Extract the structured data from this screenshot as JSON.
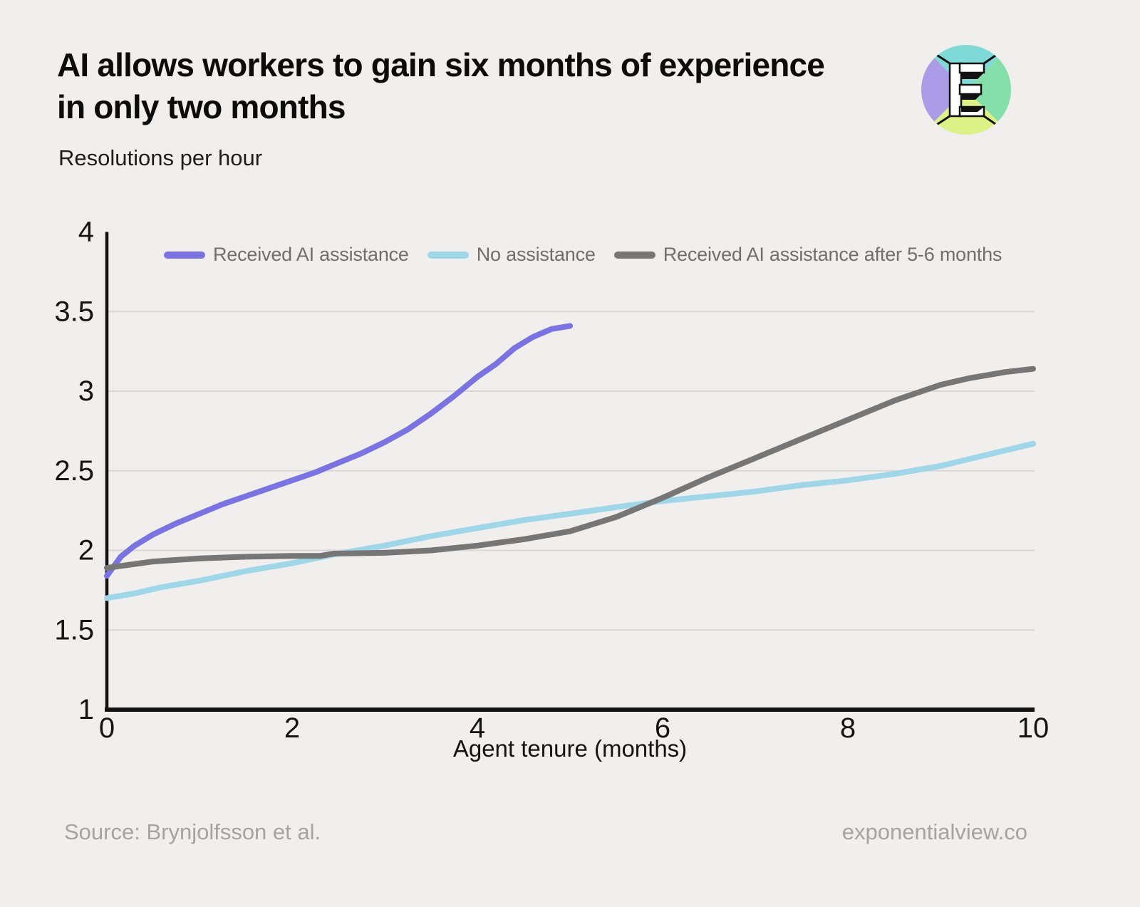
{
  "page": {
    "background": "#f0efed",
    "title_lines": [
      "AI allows workers to gain six months of experience",
      "in only two months"
    ],
    "subtitle": "Resolutions per hour",
    "footer": {
      "source": "Source: Brynjolfsson et al.",
      "site": "exponentialview.co"
    },
    "logo": {
      "letter": "E",
      "colors": {
        "left": "#ab9ce8",
        "top": "#7fd9d6",
        "right": "#85dfa9",
        "bottom": "#ddf286",
        "line": "#111111"
      }
    }
  },
  "style": {
    "grid_color": "#d8d7d5",
    "axis_color": "#111111",
    "tick_color": "#141414",
    "legend_text_color": "#6f6f6f",
    "footer_color": "#a5a4a2"
  },
  "chart_data": {
    "type": "line",
    "title": "AI allows workers to gain six months of experience in only two months",
    "ylabel": "Resolutions per hour",
    "xlabel": "Agent tenure (months)",
    "xlim": [
      0,
      10
    ],
    "ylim": [
      1,
      4
    ],
    "x_ticks": [
      0,
      2,
      4,
      6,
      8,
      10
    ],
    "y_ticks": [
      1,
      1.5,
      2,
      2.5,
      3,
      3.5,
      4
    ],
    "gridlines": [
      1.5,
      2,
      2.5,
      3,
      3.5
    ],
    "grid": "horizontal-only",
    "legend_position": "top-left-inside",
    "series": [
      {
        "name": "Received AI assistance",
        "color": "#7a73e1",
        "points": [
          [
            0,
            1.84
          ],
          [
            0.15,
            1.96
          ],
          [
            0.3,
            2.03
          ],
          [
            0.5,
            2.1
          ],
          [
            0.75,
            2.17
          ],
          [
            1,
            2.23
          ],
          [
            1.25,
            2.29
          ],
          [
            1.5,
            2.34
          ],
          [
            1.75,
            2.39
          ],
          [
            2,
            2.44
          ],
          [
            2.25,
            2.49
          ],
          [
            2.5,
            2.55
          ],
          [
            2.75,
            2.61
          ],
          [
            3,
            2.68
          ],
          [
            3.25,
            2.76
          ],
          [
            3.5,
            2.86
          ],
          [
            3.75,
            2.97
          ],
          [
            4,
            3.09
          ],
          [
            4.2,
            3.17
          ],
          [
            4.4,
            3.27
          ],
          [
            4.6,
            3.34
          ],
          [
            4.8,
            3.39
          ],
          [
            5,
            3.41
          ]
        ]
      },
      {
        "name": "No assistance",
        "color": "#9fd6e8",
        "points": [
          [
            0,
            1.7
          ],
          [
            0.3,
            1.73
          ],
          [
            0.6,
            1.77
          ],
          [
            1,
            1.81
          ],
          [
            1.5,
            1.87
          ],
          [
            2,
            1.92
          ],
          [
            2.5,
            1.98
          ],
          [
            3,
            2.03
          ],
          [
            3.5,
            2.09
          ],
          [
            4,
            2.14
          ],
          [
            4.5,
            2.19
          ],
          [
            5,
            2.23
          ],
          [
            5.6,
            2.28
          ],
          [
            6,
            2.31
          ],
          [
            6.5,
            2.34
          ],
          [
            7,
            2.37
          ],
          [
            7.5,
            2.41
          ],
          [
            8,
            2.44
          ],
          [
            8.5,
            2.48
          ],
          [
            9,
            2.53
          ],
          [
            9.5,
            2.6
          ],
          [
            10,
            2.67
          ]
        ]
      },
      {
        "name": "Received AI assistance after 5-6 months",
        "color": "#767676",
        "points": [
          [
            0,
            1.89
          ],
          [
            0.5,
            1.93
          ],
          [
            1,
            1.95
          ],
          [
            1.5,
            1.96
          ],
          [
            2,
            1.965
          ],
          [
            2.3,
            1.965
          ],
          [
            2.45,
            1.98
          ],
          [
            3,
            1.985
          ],
          [
            3.5,
            2.0
          ],
          [
            4,
            2.03
          ],
          [
            4.5,
            2.07
          ],
          [
            5,
            2.12
          ],
          [
            5.5,
            2.21
          ],
          [
            6,
            2.33
          ],
          [
            6.5,
            2.46
          ],
          [
            7,
            2.58
          ],
          [
            7.5,
            2.7
          ],
          [
            8,
            2.82
          ],
          [
            8.5,
            2.94
          ],
          [
            9,
            3.04
          ],
          [
            9.3,
            3.08
          ],
          [
            9.7,
            3.12
          ],
          [
            10,
            3.14
          ]
        ]
      }
    ]
  }
}
